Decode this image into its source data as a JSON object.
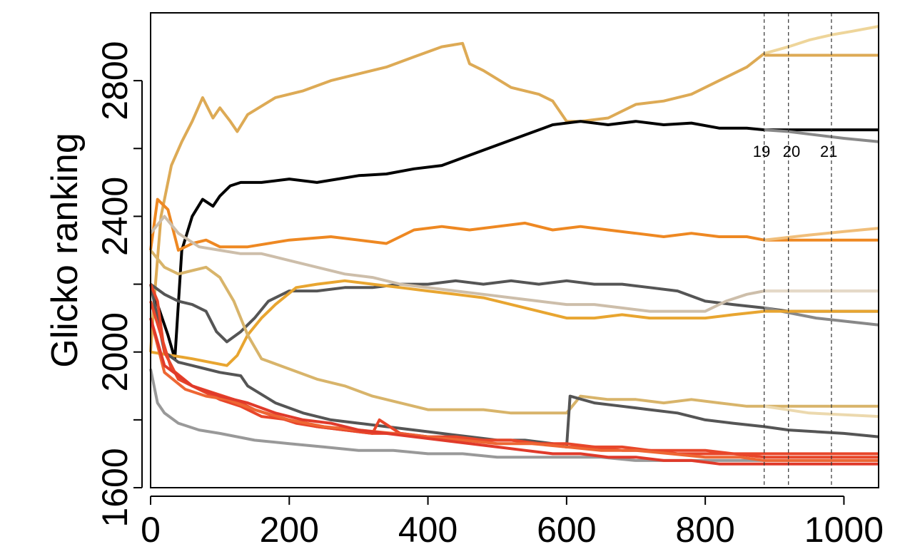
{
  "chart_data": {
    "type": "line",
    "title": "",
    "xlabel": "",
    "ylabel": "Glicko ranking",
    "xlim": [
      0,
      1050
    ],
    "ylim": [
      1600,
      3000
    ],
    "x_ticks": [
      "0",
      "200",
      "400",
      "600",
      "800",
      "1000"
    ],
    "y_ticks": [
      "1600",
      "2000",
      "2400",
      "2800"
    ],
    "grid": false,
    "legend": "none",
    "vertical_markers": [
      {
        "x": 885,
        "label": "19"
      },
      {
        "x": 920,
        "label": "20"
      },
      {
        "x": 982,
        "label": "21"
      }
    ],
    "series": [
      {
        "color": "#DDAA55",
        "x": [
          0,
          5,
          15,
          30,
          45,
          60,
          75,
          90,
          100,
          115,
          125,
          140,
          180,
          220,
          260,
          300,
          340,
          380,
          420,
          450,
          460,
          480,
          520,
          560,
          580,
          600,
          620,
          660,
          700,
          740,
          780,
          820,
          860,
          885
        ],
        "y": [
          2000,
          2150,
          2400,
          2550,
          2620,
          2680,
          2750,
          2690,
          2720,
          2680,
          2650,
          2700,
          2750,
          2770,
          2800,
          2820,
          2840,
          2870,
          2900,
          2910,
          2850,
          2830,
          2780,
          2760,
          2740,
          2680,
          2680,
          2690,
          2730,
          2740,
          2760,
          2800,
          2840,
          2880
        ]
      },
      {
        "color": "#EED59A",
        "x": [
          885,
          920,
          950,
          982,
          1010,
          1050
        ],
        "y": [
          2880,
          2900,
          2920,
          2935,
          2945,
          2960
        ]
      },
      {
        "color": "#DDAA55",
        "x": [
          885,
          1050
        ],
        "y": [
          2875,
          2875
        ]
      },
      {
        "color": "#000000",
        "x": [
          0,
          25,
          35,
          45,
          60,
          75,
          90,
          100,
          115,
          130,
          160,
          200,
          240,
          270,
          300,
          340,
          380,
          420,
          460,
          500,
          540,
          580,
          620,
          660,
          700,
          740,
          780,
          820,
          860,
          885,
          1050
        ],
        "y": [
          2200,
          2050,
          1980,
          2300,
          2400,
          2450,
          2430,
          2460,
          2490,
          2500,
          2500,
          2510,
          2500,
          2510,
          2520,
          2525,
          2540,
          2550,
          2580,
          2610,
          2640,
          2670,
          2680,
          2670,
          2680,
          2670,
          2675,
          2660,
          2660,
          2655,
          2655
        ]
      },
      {
        "color": "#888888",
        "x": [
          885,
          920,
          960,
          1000,
          1050
        ],
        "y": [
          2655,
          2650,
          2640,
          2630,
          2620
        ]
      },
      {
        "color": "#EE8822",
        "x": [
          0,
          10,
          25,
          40,
          60,
          80,
          100,
          140,
          200,
          260,
          300,
          340,
          380,
          420,
          460,
          500,
          540,
          580,
          620,
          660,
          700,
          740,
          780,
          820,
          860,
          885,
          1050
        ],
        "y": [
          2300,
          2450,
          2420,
          2300,
          2320,
          2330,
          2310,
          2310,
          2330,
          2340,
          2330,
          2320,
          2360,
          2370,
          2360,
          2370,
          2380,
          2360,
          2370,
          2360,
          2350,
          2340,
          2350,
          2340,
          2340,
          2330,
          2330
        ]
      },
      {
        "color": "#F0BE7A",
        "x": [
          885,
          950,
          1000,
          1050
        ],
        "y": [
          2330,
          2345,
          2355,
          2365
        ]
      },
      {
        "color": "#555555",
        "x": [
          0,
          20,
          40,
          60,
          80,
          95,
          110,
          130,
          150,
          170,
          200,
          240,
          280,
          320,
          360,
          400,
          440,
          480,
          520,
          560,
          600,
          640,
          680,
          720,
          760,
          800,
          840,
          885,
          920,
          980,
          1050
        ],
        "y": [
          2200,
          2170,
          2150,
          2140,
          2120,
          2060,
          2030,
          2060,
          2100,
          2150,
          2180,
          2180,
          2190,
          2190,
          2200,
          2200,
          2210,
          2200,
          2210,
          2200,
          2210,
          2200,
          2200,
          2190,
          2180,
          2150,
          2140,
          2130,
          2120,
          2120,
          2120
        ]
      },
      {
        "color": "#888888",
        "x": [
          885,
          960,
          1050
        ],
        "y": [
          2130,
          2100,
          2080
        ]
      },
      {
        "color": "#CDBEAA",
        "x": [
          0,
          20,
          40,
          70,
          100,
          130,
          160,
          200,
          240,
          280,
          320,
          360,
          400,
          440,
          480,
          520,
          560,
          600,
          640,
          680,
          720,
          760,
          800,
          830,
          860,
          885,
          1050
        ],
        "y": [
          2350,
          2400,
          2350,
          2310,
          2300,
          2290,
          2290,
          2270,
          2250,
          2230,
          2220,
          2200,
          2190,
          2180,
          2170,
          2160,
          2150,
          2140,
          2140,
          2130,
          2120,
          2120,
          2120,
          2150,
          2170,
          2180,
          2180
        ]
      },
      {
        "color": "#E5D9C8",
        "x": [
          885,
          1050
        ],
        "y": [
          2180,
          2180
        ]
      },
      {
        "color": "#E8A530",
        "x": [
          0,
          60,
          110,
          125,
          140,
          160,
          180,
          210,
          240,
          280,
          320,
          360,
          400,
          440,
          480,
          520,
          560,
          600,
          640,
          680,
          720,
          760,
          800,
          840,
          885,
          1050
        ],
        "y": [
          2000,
          1980,
          1960,
          1990,
          2050,
          2100,
          2140,
          2190,
          2200,
          2210,
          2200,
          2190,
          2180,
          2170,
          2160,
          2140,
          2120,
          2100,
          2100,
          2110,
          2100,
          2100,
          2100,
          2110,
          2120,
          2120
        ]
      },
      {
        "color": "#D8B46A",
        "x": [
          0,
          20,
          40,
          60,
          80,
          100,
          120,
          140,
          160,
          200,
          240,
          280,
          320,
          360,
          400,
          440,
          480,
          520,
          560,
          600,
          620,
          660,
          700,
          740,
          780,
          820,
          860,
          885,
          1050
        ],
        "y": [
          2300,
          2250,
          2230,
          2240,
          2250,
          2220,
          2150,
          2050,
          1980,
          1950,
          1920,
          1900,
          1870,
          1850,
          1830,
          1830,
          1830,
          1820,
          1820,
          1820,
          1870,
          1860,
          1860,
          1850,
          1860,
          1850,
          1840,
          1840,
          1840
        ]
      },
      {
        "color": "#ECD9AE",
        "x": [
          885,
          950,
          1050
        ],
        "y": [
          1840,
          1820,
          1810
        ]
      },
      {
        "color": "#555555",
        "x": [
          0,
          20,
          40,
          60,
          80,
          100,
          130,
          140,
          180,
          220,
          260,
          300,
          340,
          380,
          420,
          460,
          500,
          540,
          580,
          600,
          605,
          640,
          680,
          720,
          760,
          800,
          840,
          885,
          920,
          1000,
          1050
        ],
        "y": [
          2200,
          2000,
          1970,
          1960,
          1950,
          1940,
          1930,
          1900,
          1850,
          1820,
          1800,
          1790,
          1780,
          1770,
          1760,
          1750,
          1740,
          1740,
          1730,
          1720,
          1870,
          1850,
          1840,
          1830,
          1820,
          1800,
          1790,
          1780,
          1770,
          1760,
          1750
        ]
      },
      {
        "color": "#999999",
        "x": [
          0,
          10,
          20,
          40,
          70,
          100,
          150,
          200,
          250,
          300,
          350,
          400,
          450,
          500,
          550,
          600,
          650,
          700,
          750,
          800,
          850,
          885,
          1050
        ],
        "y": [
          1950,
          1850,
          1820,
          1790,
          1770,
          1760,
          1740,
          1730,
          1720,
          1710,
          1710,
          1700,
          1700,
          1690,
          1690,
          1690,
          1690,
          1680,
          1680,
          1680,
          1680,
          1680,
          1680
        ]
      },
      {
        "color": "#E8462A",
        "x": [
          0,
          10,
          20,
          40,
          60,
          80,
          100,
          130,
          160,
          200,
          240,
          280,
          320,
          360,
          400,
          440,
          480,
          520,
          560,
          600,
          640,
          680,
          720,
          760,
          800,
          840,
          885,
          1050
        ],
        "y": [
          2200,
          2150,
          2000,
          1920,
          1900,
          1880,
          1860,
          1840,
          1810,
          1800,
          1780,
          1770,
          1760,
          1760,
          1750,
          1750,
          1740,
          1740,
          1730,
          1730,
          1720,
          1720,
          1710,
          1710,
          1710,
          1700,
          1700,
          1700
        ]
      },
      {
        "color": "#E8462A",
        "x": [
          0,
          30,
          60,
          90,
          120,
          150,
          180,
          210,
          240,
          280,
          320,
          330,
          360,
          400,
          440,
          480,
          520,
          560,
          600,
          640,
          680,
          720,
          760,
          800,
          840,
          885,
          1050
        ],
        "y": [
          2150,
          1950,
          1900,
          1880,
          1860,
          1830,
          1810,
          1790,
          1780,
          1770,
          1760,
          1800,
          1760,
          1750,
          1740,
          1740,
          1740,
          1730,
          1720,
          1720,
          1710,
          1710,
          1700,
          1700,
          1700,
          1690,
          1690
        ]
      },
      {
        "color": "#EE6633",
        "x": [
          0,
          20,
          50,
          80,
          110,
          150,
          200,
          250,
          300,
          350,
          400,
          450,
          500,
          550,
          600,
          650,
          700,
          750,
          800,
          850,
          885,
          1050
        ],
        "y": [
          2100,
          1940,
          1890,
          1870,
          1860,
          1830,
          1800,
          1780,
          1770,
          1760,
          1750,
          1740,
          1730,
          1730,
          1720,
          1710,
          1710,
          1700,
          1690,
          1690,
          1680,
          1680
        ]
      },
      {
        "color": "#E03A2A",
        "x": [
          0,
          20,
          60,
          100,
          140,
          180,
          220,
          260,
          300,
          340,
          380,
          420,
          460,
          500,
          540,
          580,
          620,
          660,
          700,
          740,
          780,
          820,
          860,
          885,
          1050
        ],
        "y": [
          2100,
          1960,
          1900,
          1870,
          1850,
          1820,
          1800,
          1790,
          1770,
          1760,
          1750,
          1740,
          1730,
          1720,
          1710,
          1700,
          1700,
          1690,
          1690,
          1680,
          1680,
          1670,
          1670,
          1670,
          1670
        ]
      }
    ]
  }
}
